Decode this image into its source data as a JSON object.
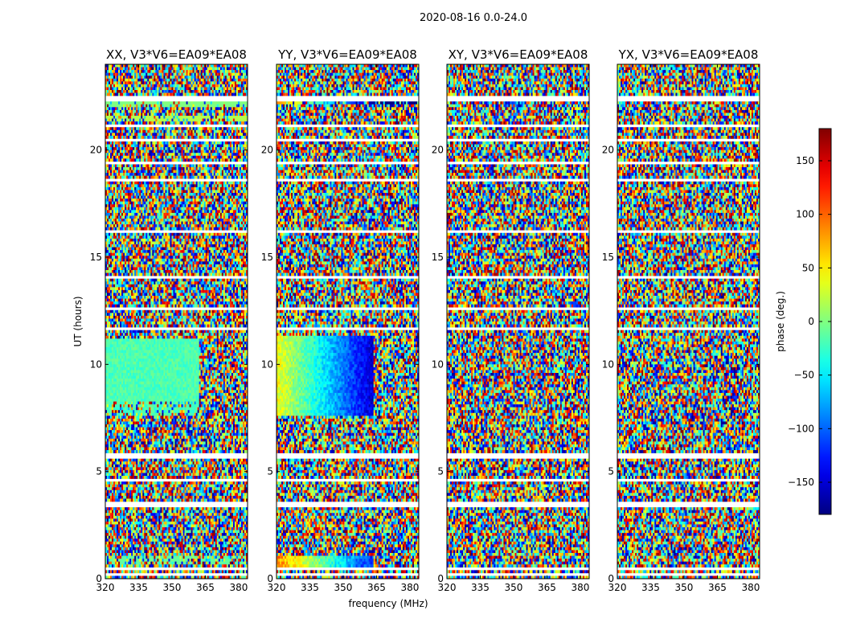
{
  "chart_data": {
    "type": "heatmap",
    "suptitle": "2020-08-16 0.0-24.0",
    "panels": [
      {
        "title": "XX, V3*V6=EA09*EA08",
        "pattern": "xx"
      },
      {
        "title": "YY, V3*V6=EA09*EA08",
        "pattern": "yy"
      },
      {
        "title": "XY, V3*V6=EA09*EA08",
        "pattern": "cross"
      },
      {
        "title": "YX, V3*V6=EA09*EA08",
        "pattern": "cross"
      }
    ],
    "xlabel": "frequency (MHz)",
    "ylabel": "UT (hours)",
    "xlim": [
      320,
      384
    ],
    "ylim": [
      0,
      24
    ],
    "xticks": [
      "320",
      "335",
      "350",
      "365",
      "380"
    ],
    "xtick_values": [
      320,
      335,
      350,
      365,
      380
    ],
    "yticks": [
      "0",
      "5",
      "10",
      "15",
      "20"
    ],
    "ytick_values": [
      0,
      5,
      10,
      15,
      20
    ],
    "colorbar": {
      "label": "phase (deg.)",
      "range": [
        -180,
        180
      ],
      "tick_values": [
        150,
        100,
        50,
        0,
        -50,
        -100,
        -150
      ],
      "tick_labels": [
        "150",
        "100",
        "50",
        "0",
        "−50",
        "−100",
        "−150"
      ],
      "colormap": "jet"
    },
    "flagged_hours": [
      [
        22.3,
        22.55
      ],
      [
        21.05,
        21.15
      ],
      [
        20.4,
        20.5
      ],
      [
        19.35,
        19.45
      ],
      [
        18.5,
        18.6
      ],
      [
        17.3,
        17.38
      ],
      [
        16.2,
        16.28
      ],
      [
        14.05,
        14.13
      ],
      [
        12.6,
        12.68
      ],
      [
        11.6,
        11.7
      ],
      [
        5.65,
        5.9
      ],
      [
        4.55,
        4.65
      ],
      [
        3.35,
        3.6
      ],
      [
        0.45,
        0.55
      ],
      [
        0.18,
        0.26
      ]
    ]
  }
}
